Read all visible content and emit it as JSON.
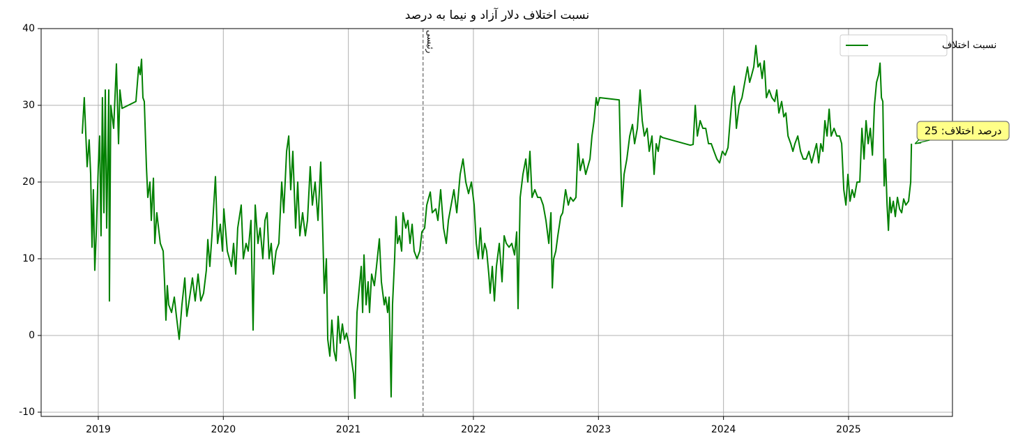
{
  "chart_data": {
    "type": "line",
    "title": "نسبت اختلاف دلار آزاد و نیما به درصد",
    "x": [
      2018.872,
      2018.888,
      2018.911,
      2018.927,
      2018.939,
      2018.95,
      2018.961,
      2018.972,
      2018.983,
      2019,
      2019.011,
      2019.022,
      2019.033,
      2019.045,
      2019.056,
      2019.067,
      2019.078,
      2019.084,
      2019.089,
      2019.1,
      2019.123,
      2019.145,
      2019.162,
      2019.173,
      2019.19,
      2019.301,
      2019.323,
      2019.335,
      2019.346,
      2019.357,
      2019.368,
      2019.385,
      2019.396,
      2019.413,
      2019.424,
      2019.441,
      2019.452,
      2019.468,
      2019.496,
      2019.519,
      2019.53,
      2019.541,
      2019.552,
      2019.563,
      2019.586,
      2019.608,
      2019.625,
      2019.647,
      2019.669,
      2019.692,
      2019.708,
      2019.731,
      2019.753,
      2019.775,
      2019.798,
      2019.82,
      2019.842,
      2019.864,
      2019.876,
      2019.892,
      2019.909,
      2019.937,
      2019.954,
      2019.976,
      2019.993,
      2020.004,
      2020.032,
      2020.065,
      2020.082,
      2020.099,
      2020.115,
      2020.143,
      2020.16,
      2020.182,
      2020.199,
      2020.21,
      2020.221,
      2020.238,
      2020.255,
      2020.277,
      2020.294,
      2020.316,
      2020.333,
      2020.35,
      2020.366,
      2020.383,
      2020.4,
      2020.422,
      2020.444,
      2020.467,
      2020.483,
      2020.506,
      2020.523,
      2020.539,
      2020.556,
      2020.578,
      2020.595,
      2020.612,
      2020.634,
      2020.656,
      2020.673,
      2020.695,
      2020.712,
      2020.734,
      2020.757,
      2020.779,
      2020.796,
      2020.807,
      2020.824,
      2020.835,
      2020.852,
      2020.868,
      2020.885,
      2020.902,
      2020.918,
      2020.935,
      2020.952,
      2020.969,
      2020.985,
      2021.002,
      2021.019,
      2021.041,
      2021.052,
      2021.069,
      2021.086,
      2021.103,
      2021.114,
      2021.125,
      2021.142,
      2021.158,
      2021.169,
      2021.186,
      2021.208,
      2021.225,
      2021.248,
      2021.264,
      2021.287,
      2021.298,
      2021.314,
      2021.326,
      2021.342,
      2021.353,
      2021.37,
      2021.381,
      2021.393,
      2021.409,
      2021.426,
      2021.437,
      2021.459,
      2021.476,
      2021.493,
      2021.51,
      2021.526,
      2021.549,
      2021.571,
      2021.588,
      2021.61,
      2021.627,
      2021.655,
      2021.671,
      2021.699,
      2021.716,
      2021.738,
      2021.761,
      2021.783,
      2021.8,
      2021.822,
      2021.844,
      2021.867,
      2021.894,
      2021.917,
      2021.939,
      2021.961,
      2021.984,
      2022.006,
      2022.023,
      2022.039,
      2022.056,
      2022.073,
      2022.09,
      2022.106,
      2022.123,
      2022.134,
      2022.151,
      2022.168,
      2022.184,
      2022.207,
      2022.229,
      2022.246,
      2022.263,
      2022.285,
      2022.307,
      2022.329,
      2022.346,
      2022.357,
      2022.374,
      2022.396,
      2022.419,
      2022.435,
      2022.452,
      2022.469,
      2022.491,
      2022.514,
      2022.536,
      2022.558,
      2022.58,
      2022.603,
      2022.62,
      2022.631,
      2022.642,
      2022.659,
      2022.675,
      2022.698,
      2022.714,
      2022.737,
      2022.759,
      2022.776,
      2022.798,
      2022.82,
      2022.837,
      2022.854,
      2022.876,
      2022.898,
      2022.915,
      2022.932,
      2022.948,
      2022.965,
      2022.982,
      2022.993,
      2023.01,
      2023.166,
      2023.177,
      2023.188,
      2023.205,
      2023.227,
      2023.25,
      2023.272,
      2023.289,
      2023.311,
      2023.333,
      2023.35,
      2023.367,
      2023.389,
      2023.406,
      2023.428,
      2023.445,
      2023.462,
      2023.478,
      2023.495,
      2023.512,
      2023.735,
      2023.757,
      2023.774,
      2023.791,
      2023.813,
      2023.835,
      2023.858,
      2023.88,
      2023.902,
      2023.924,
      2023.947,
      2023.969,
      2023.991,
      2024.014,
      2024.036,
      2024.053,
      2024.069,
      2024.086,
      2024.103,
      2024.125,
      2024.148,
      2024.17,
      2024.192,
      2024.209,
      2024.226,
      2024.242,
      2024.259,
      2024.276,
      2024.293,
      2024.309,
      2024.326,
      2024.343,
      2024.365,
      2024.387,
      2024.41,
      2024.426,
      2024.443,
      2024.465,
      2024.482,
      2024.499,
      2024.516,
      2024.538,
      2024.555,
      2024.571,
      2024.594,
      2024.616,
      2024.638,
      2024.661,
      2024.683,
      2024.705,
      2024.728,
      2024.744,
      2024.761,
      2024.778,
      2024.795,
      2024.811,
      2024.828,
      2024.845,
      2024.861,
      2024.884,
      2024.906,
      2024.928,
      2024.945,
      2024.962,
      2024.979,
      2024.995,
      2025.012,
      2025.029,
      2025.046,
      2025.068,
      2025.09,
      2025.107,
      2025.124,
      2025.14,
      2025.157,
      2025.174,
      2025.191,
      2025.207,
      2025.224,
      2025.241,
      2025.252,
      2025.263,
      2025.274,
      2025.285,
      2025.296,
      2025.308,
      2025.319,
      2025.33,
      2025.341,
      2025.358,
      2025.374,
      2025.391,
      2025.408,
      2025.425,
      2025.441,
      2025.458,
      2025.48,
      2025.497,
      2025.503
    ],
    "series": [
      {
        "name": "نسبت اختلاف",
        "color": "#008000",
        "values": [
          26.3,
          31,
          22,
          25.5,
          21,
          11.5,
          19,
          8.5,
          13,
          22,
          26,
          13,
          31,
          16,
          32,
          14,
          25,
          32,
          4.5,
          30,
          27,
          35.4,
          25,
          32,
          29.6,
          30.5,
          35,
          34,
          36,
          31,
          30.5,
          22,
          18,
          20,
          15,
          20.5,
          12,
          16,
          12,
          11,
          7,
          2,
          6.5,
          4,
          3,
          5,
          2.5,
          -0.5,
          4,
          7.5,
          2.5,
          5,
          7.5,
          4.5,
          8,
          4.5,
          5.5,
          8.5,
          12.5,
          9,
          13,
          20.7,
          12,
          14.5,
          11,
          16.5,
          11,
          9,
          12,
          8,
          14,
          17,
          10,
          12,
          11,
          13,
          15,
          0.7,
          17,
          12,
          14,
          10,
          15,
          16,
          10,
          12,
          8,
          11,
          12,
          20,
          16,
          24,
          26,
          19,
          24,
          14,
          20,
          13,
          16,
          13,
          15,
          22,
          17,
          20,
          15,
          22.6,
          13,
          5.5,
          10,
          -0.5,
          -2.7,
          2,
          -2,
          -3.3,
          2.5,
          -1,
          1.5,
          -0.5,
          0.3,
          -1,
          -2.5,
          -5,
          -8.2,
          3,
          6,
          9,
          3,
          10.5,
          4,
          7,
          3,
          8,
          6.5,
          9,
          12.6,
          7,
          4,
          5,
          3,
          5,
          -8,
          4,
          10,
          15.5,
          12,
          13,
          11,
          16,
          14,
          15,
          12,
          14.5,
          11,
          10,
          11,
          13.5,
          14,
          17,
          18.7,
          16,
          16.5,
          15,
          19,
          14,
          12,
          15,
          17,
          19,
          16,
          21,
          23,
          20,
          18.5,
          20,
          17,
          12,
          10,
          14,
          10,
          12,
          11,
          8,
          5.5,
          9,
          4.5,
          9,
          12,
          7,
          13,
          12,
          11.5,
          12,
          10.5,
          13.5,
          3.5,
          18,
          21,
          23,
          20,
          24,
          18,
          19,
          18,
          18,
          17,
          15,
          12,
          16,
          6.2,
          10,
          11,
          13,
          15.5,
          16,
          19,
          17,
          18,
          17.5,
          18,
          25,
          21.5,
          23,
          21,
          22,
          23,
          26,
          28,
          31,
          30,
          31,
          30.7,
          23,
          16.8,
          21,
          23,
          26,
          27.5,
          25,
          27,
          32,
          28,
          26,
          27,
          24,
          26,
          21,
          25,
          24,
          26,
          25.8,
          24.8,
          24.9,
          30,
          26,
          28,
          27,
          27,
          25,
          25,
          24,
          23,
          22.5,
          24,
          23.5,
          24.5,
          28,
          31,
          32.5,
          27,
          30,
          31,
          33,
          35,
          33,
          34,
          35,
          37.8,
          35,
          35.5,
          33.5,
          35.8,
          31,
          32,
          31,
          30.5,
          32,
          29,
          30.5,
          28.5,
          29,
          26,
          25,
          24,
          25,
          26,
          24,
          23,
          23,
          24,
          22.5,
          24,
          25,
          22.5,
          25,
          24,
          28,
          26,
          29.5,
          26,
          27,
          26,
          26,
          25,
          19,
          17,
          21,
          17.5,
          19,
          18,
          20,
          20,
          27,
          23,
          28,
          25,
          27,
          23.5,
          30,
          33,
          34,
          35.5,
          31,
          30.5,
          19.5,
          23,
          17,
          13.7,
          18,
          16,
          17.5,
          15.5,
          18,
          16.5,
          16,
          17.8,
          17,
          17.5,
          20,
          25
        ]
      }
    ],
    "xlim": [
      2018.543,
      2025.831
    ],
    "xticks": [
      2019,
      2020,
      2021,
      2022,
      2023,
      2024,
      2025
    ],
    "ylim": [
      -10.55,
      40
    ],
    "yticks": [
      -10,
      0,
      10,
      20,
      30,
      40
    ],
    "grid": true,
    "legend": "upper right",
    "vlines": [
      {
        "x": 2021.597,
        "label": "رئیسی",
        "color": "#808080",
        "label_color": "#008000"
      }
    ],
    "annotation": {
      "text": "درصد اختلاف: 25",
      "color": "#ffff88"
    }
  }
}
